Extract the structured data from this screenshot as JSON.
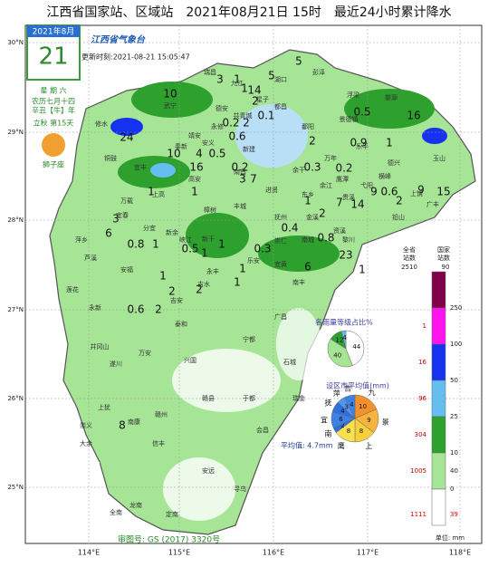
{
  "header": {
    "title": "江西省国家站、区域站　2021年08月21日 15时　最近24小时累计降水"
  },
  "calendar": {
    "month": "2021年8月",
    "day": "21",
    "weekday": "星 期 六",
    "lunar": "农历七月十四",
    "year": "辛丑【牛】年",
    "solar_term": "立秋 第15天",
    "zodiac": "狮子座"
  },
  "logo": {
    "name": "江西省气象台",
    "update": "更新时刻:2021-08-21 15:05:47"
  },
  "axes": {
    "lat": [
      "30°N",
      "29°N",
      "28°N",
      "27°N",
      "26°N",
      "25°N"
    ],
    "lon": [
      "114°E",
      "115°E",
      "116°E",
      "117°E",
      "118°E"
    ]
  },
  "stations": [
    5,
    3,
    1,
    14,
    1,
    5,
    2,
    10,
    0.5,
    16,
    0.1,
    0.2,
    2,
    0.6,
    24,
    2,
    0.9,
    1,
    4,
    0.5,
    10,
    0.2,
    0.3,
    0.2,
    16,
    3,
    7,
    9,
    0.6,
    2,
    9,
    15,
    1,
    1,
    1,
    7,
    14,
    2,
    3,
    0.4,
    6,
    0.8,
    1,
    0.5,
    1,
    1,
    0.3,
    0.8,
    23,
    1,
    2,
    2,
    1,
    1,
    6,
    1,
    0.6,
    2,
    8
  ],
  "cities": [
    "修水",
    "武宁",
    "瑞昌",
    "九江",
    "湖口",
    "彭泽",
    "德安",
    "共青城",
    "都昌",
    "永修",
    "星子",
    "浮梁",
    "婺源",
    "景德镇",
    "德兴",
    "乐平",
    "鄱阳",
    "靖安",
    "安义",
    "奉新",
    "新建",
    "南昌",
    "进贤",
    "余干",
    "万年",
    "铜鼓",
    "宜丰",
    "高安",
    "上高",
    "万载",
    "丰城",
    "东乡",
    "余江",
    "鹰潭",
    "贵溪",
    "弋阳",
    "横峰",
    "上饶",
    "玉山",
    "广丰",
    "铅山",
    "宜春",
    "分宜",
    "新余",
    "樟树",
    "新干",
    "崇仁",
    "抚州",
    "金溪",
    "资溪",
    "萍乡",
    "芦溪",
    "安福",
    "峡江",
    "乐安",
    "宜黄",
    "南城",
    "黎川",
    "南丰",
    "莲花",
    "永丰",
    "吉水",
    "吉安",
    "泰和",
    "永新",
    "广昌",
    "井冈山",
    "遂川",
    "万安",
    "兴国",
    "宁都",
    "石城",
    "于都",
    "瑞金",
    "上犹",
    "赣县",
    "赣州",
    "南康",
    "崇义",
    "大余",
    "信丰",
    "会昌",
    "安远",
    "寻乌",
    "定南",
    "龙南",
    "全南"
  ],
  "legend": {
    "province_header": [
      "全省",
      "站数"
    ],
    "national_header": [
      "国家",
      "站数"
    ],
    "province_total": 2510,
    "national_total": 90,
    "colors": [
      "#80004a",
      "#ff14f0",
      "#1432f0",
      "#64bef0",
      "#2da02d",
      "#a6e496",
      "#ffffff"
    ],
    "thresholds": [
      250,
      100,
      50,
      25,
      10,
      0
    ],
    "province_counts": [
      1,
      16,
      96,
      304,
      1005
    ],
    "national_counts": [
      40
    ],
    "no_rain_province": 1111,
    "no_rain_national": 39,
    "unit": "单位: mm"
  },
  "share_pie": {
    "title": "各雨量等级占比%",
    "values": [
      44,
      40,
      12,
      4
    ],
    "colors": [
      "#ffffff",
      "#a6e496",
      "#2da02d",
      "#64bef0"
    ]
  },
  "city_pie": {
    "title": "设区市平均值(mm)",
    "labels": [
      "九",
      "景",
      "上",
      "鹰",
      "南",
      "宜",
      "抚",
      "萍",
      "吉"
    ],
    "values": [
      10,
      9,
      8,
      8,
      2,
      6,
      4,
      3,
      4
    ],
    "colors": [
      "#f5912d",
      "#f7b43c",
      "#f5d23c",
      "#f8e050",
      "#2d6ee0",
      "#3c82e6",
      "#2d6ee0",
      "#5096f0",
      "#3c82e6"
    ]
  },
  "average": "平均值: 4.7mm",
  "review": "审图号: GS (2017) 3320号"
}
